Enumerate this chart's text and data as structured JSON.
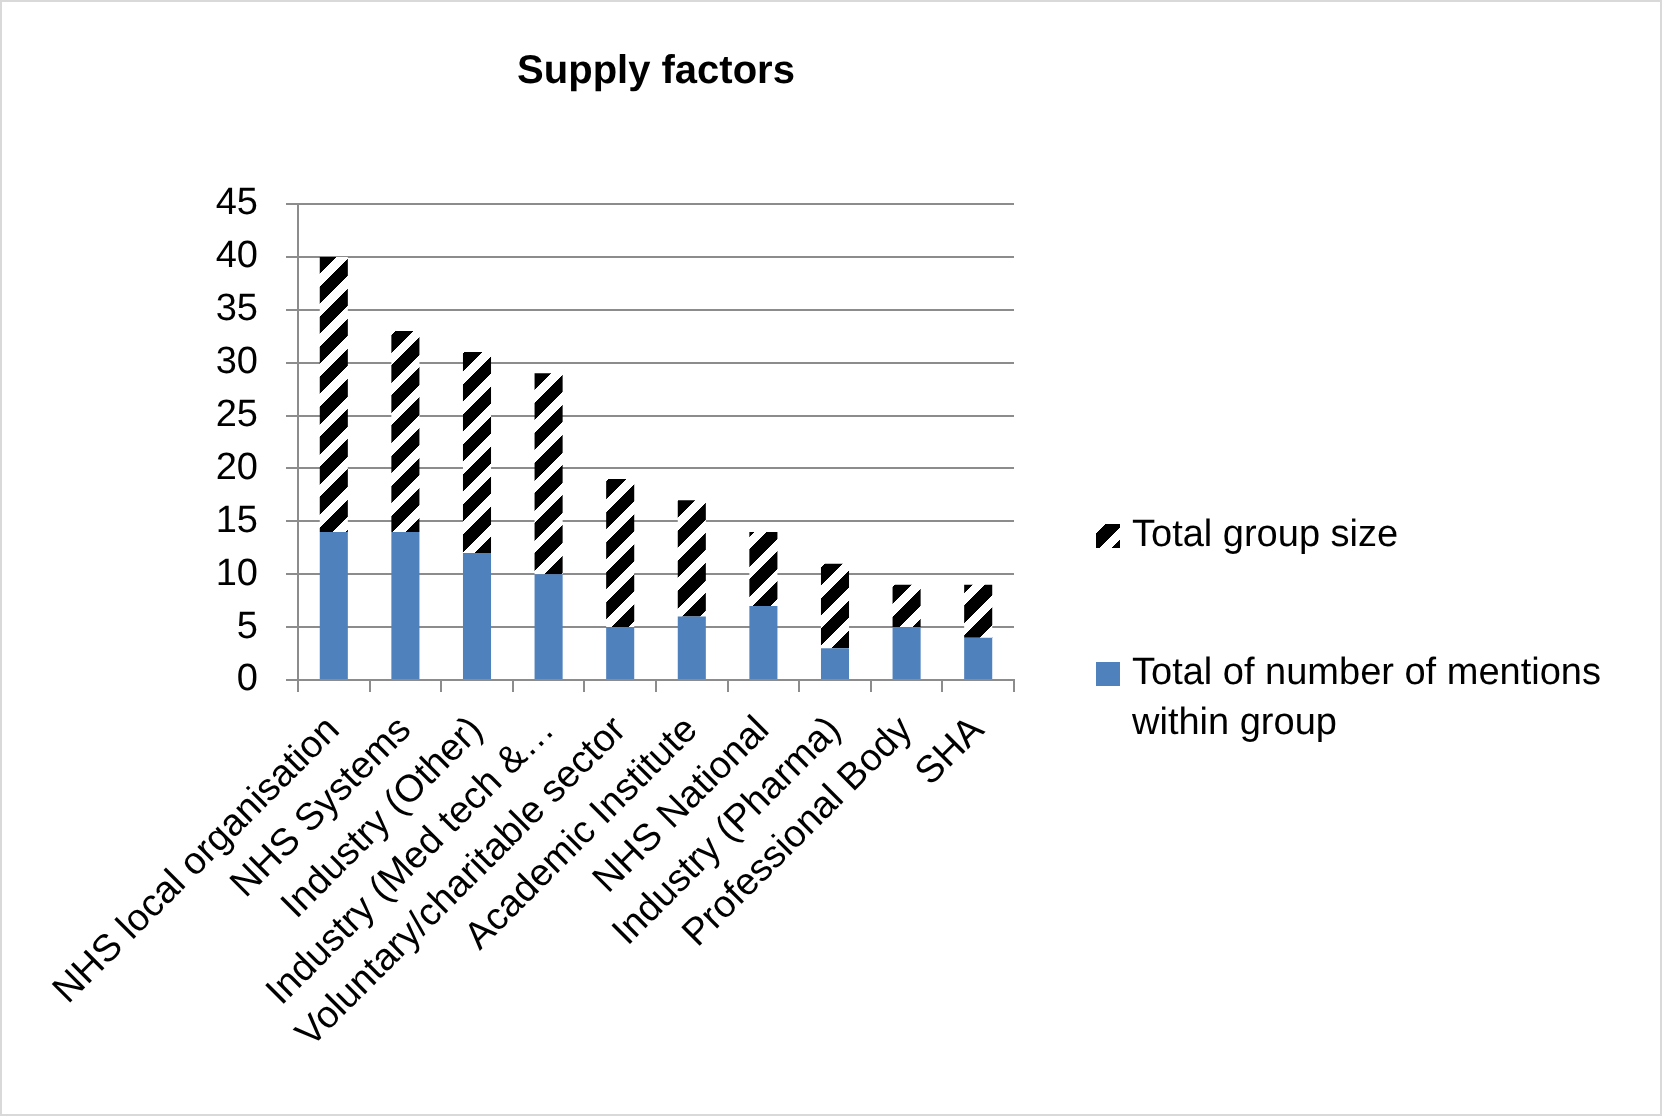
{
  "chart_data": {
    "type": "bar",
    "title": "Supply factors",
    "categories": [
      "NHS local organisation",
      "NHS Systems",
      "Industry (Other)",
      "Industry (Med tech &…",
      "Voluntary/charitable sector",
      "Academic Institute",
      "NHS National",
      "Industry (Pharma)",
      "Professional Body",
      "SHA"
    ],
    "stacked": true,
    "series": [
      {
        "name": "Total of number of mentions within group",
        "color": "#4f81bd",
        "values": [
          14,
          14,
          12,
          10,
          5,
          6,
          7,
          3,
          5,
          4
        ]
      },
      {
        "name": "Total group size",
        "color": "#000000",
        "values": [
          26,
          19,
          19,
          19,
          14,
          11,
          7,
          8,
          4,
          5
        ]
      }
    ],
    "ylim": [
      0,
      45
    ],
    "yticks": [
      0,
      5,
      10,
      15,
      20,
      25,
      30,
      35,
      40,
      45
    ],
    "grid": "y",
    "legend": "right"
  }
}
